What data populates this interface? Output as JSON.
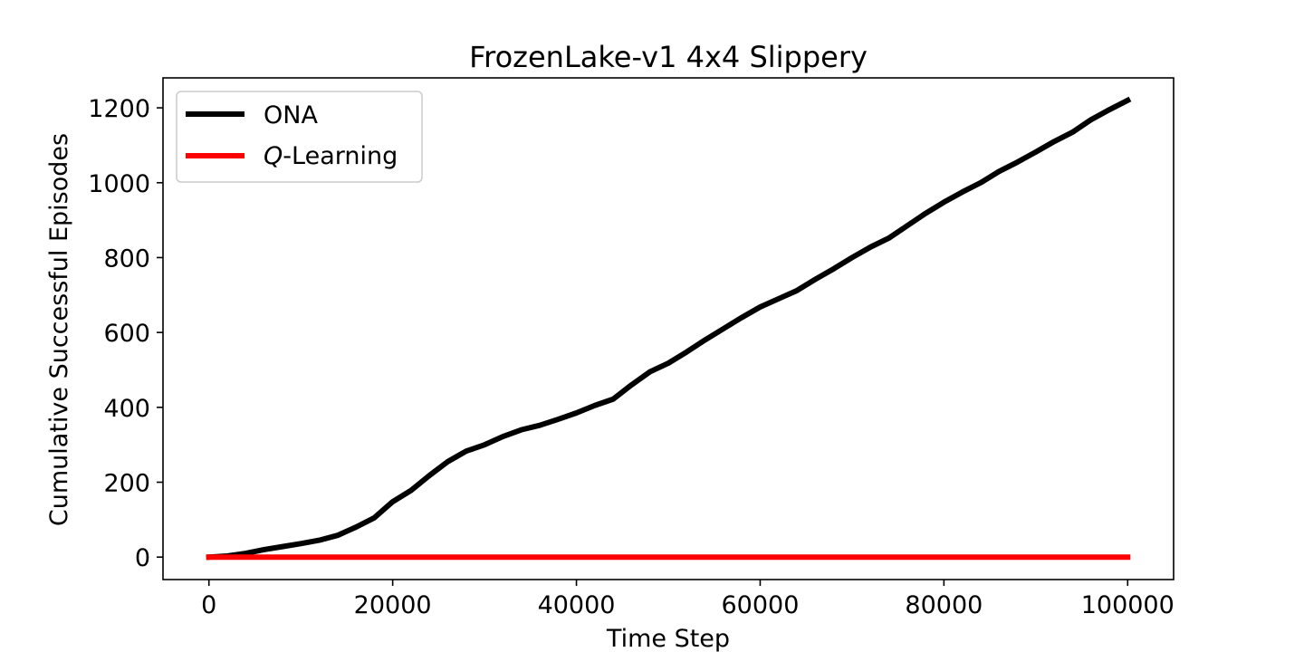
{
  "chart_data": {
    "type": "line",
    "title": "FrozenLake-v1 4x4 Slippery",
    "xlabel": "Time Step",
    "ylabel": "Cumulative Successful Episodes",
    "xlim": [
      -5000,
      105000
    ],
    "ylim": [
      -60,
      1280
    ],
    "xticks": [
      0,
      20000,
      40000,
      60000,
      80000,
      100000
    ],
    "yticks": [
      0,
      200,
      400,
      600,
      800,
      1000,
      1200
    ],
    "xtick_labels": [
      "0",
      "20000",
      "40000",
      "60000",
      "80000",
      "100000"
    ],
    "ytick_labels": [
      "0",
      "200",
      "400",
      "600",
      "800",
      "1000",
      "1200"
    ],
    "grid": false,
    "legend_position": "top-left",
    "series": [
      {
        "name": "ONA",
        "legend_label": "ONA",
        "color": "#000000",
        "x": [
          0,
          2000,
          4000,
          6000,
          8000,
          10000,
          12000,
          14000,
          16000,
          18000,
          20000,
          22000,
          24000,
          26000,
          28000,
          30000,
          32000,
          34000,
          36000,
          38000,
          40000,
          42000,
          44000,
          46000,
          48000,
          50000,
          52000,
          54000,
          56000,
          58000,
          60000,
          62000,
          64000,
          66000,
          68000,
          70000,
          72000,
          74000,
          76000,
          78000,
          80000,
          82000,
          84000,
          86000,
          88000,
          90000,
          92000,
          94000,
          96000,
          98000,
          100000
        ],
        "y": [
          0,
          3,
          10,
          20,
          28,
          36,
          45,
          58,
          80,
          105,
          148,
          178,
          218,
          255,
          283,
          300,
          322,
          340,
          352,
          368,
          385,
          405,
          422,
          460,
          495,
          518,
          548,
          580,
          610,
          640,
          668,
          690,
          712,
          742,
          770,
          800,
          828,
          852,
          885,
          918,
          948,
          975,
          1000,
          1030,
          1055,
          1082,
          1110,
          1135,
          1168,
          1195,
          1220
        ]
      },
      {
        "name": "Q-Learning",
        "legend_label_italic": "Q",
        "legend_label_rest": "-Learning",
        "color": "#ff0000",
        "x": [
          0,
          100000
        ],
        "y": [
          0,
          0
        ]
      }
    ]
  }
}
